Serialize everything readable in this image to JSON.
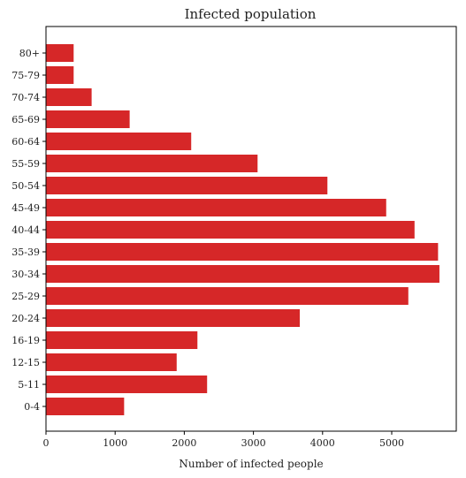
{
  "chart_data": {
    "type": "bar",
    "orientation": "horizontal",
    "title": "Infected population",
    "xlabel": "Number of infected people",
    "ylabel": "",
    "xlim": [
      0,
      6000
    ],
    "xticks": [
      0,
      1000,
      2000,
      3000,
      4000,
      5000
    ],
    "grid": false,
    "bar_color": "#d62728",
    "categories": [
      "0-4",
      "5-11",
      "12-15",
      "16-19",
      "20-24",
      "25-29",
      "30-34",
      "35-39",
      "40-44",
      "45-49",
      "50-54",
      "55-59",
      "60-64",
      "65-69",
      "70-74",
      "75-79",
      "80+"
    ],
    "values": [
      1130,
      2330,
      1890,
      2190,
      3670,
      5240,
      5690,
      5670,
      5330,
      4920,
      4070,
      3060,
      2100,
      1210,
      660,
      400,
      400
    ]
  }
}
